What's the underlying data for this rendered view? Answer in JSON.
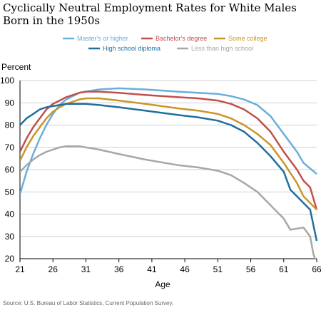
{
  "chart_data": {
    "type": "line",
    "title": "Cyclically Neutral Employment Rates for White Males Born in the 1950s",
    "ylabel": "Percent",
    "xlabel": "Age",
    "xlim": [
      21,
      66
    ],
    "ylim": [
      20,
      100
    ],
    "x_ticks": [
      21,
      26,
      31,
      36,
      41,
      46,
      51,
      56,
      61,
      66
    ],
    "y_ticks": [
      20,
      30,
      40,
      50,
      60,
      70,
      80,
      90,
      100
    ],
    "grid": "horizontal",
    "legend_position": "top",
    "source": "Source: U.S. Bureau of Labor Statistics, Current Population Survey.",
    "series": [
      {
        "name": "Master's or higher",
        "color": "#6aaedc",
        "points": [
          [
            21,
            49
          ],
          [
            22,
            59
          ],
          [
            23,
            67
          ],
          [
            24,
            74
          ],
          [
            25,
            80
          ],
          [
            26,
            85
          ],
          [
            27,
            89
          ],
          [
            28,
            91.5
          ],
          [
            29,
            93
          ],
          [
            30,
            94.5
          ],
          [
            31,
            95
          ],
          [
            33,
            96
          ],
          [
            36,
            96.5
          ],
          [
            40,
            96
          ],
          [
            45,
            95
          ],
          [
            48,
            94.5
          ],
          [
            51,
            94
          ],
          [
            53,
            93
          ],
          [
            55,
            91.5
          ],
          [
            57,
            89
          ],
          [
            59,
            84
          ],
          [
            61,
            76
          ],
          [
            63,
            68
          ],
          [
            64,
            63
          ],
          [
            65,
            60.5
          ],
          [
            66,
            58
          ]
        ]
      },
      {
        "name": "Bachelor's degree",
        "color": "#c0504d",
        "points": [
          [
            21,
            68
          ],
          [
            22,
            74
          ],
          [
            23,
            79
          ],
          [
            24,
            83
          ],
          [
            25,
            87
          ],
          [
            26,
            89.5
          ],
          [
            27,
            91
          ],
          [
            28,
            92.5
          ],
          [
            29,
            93.5
          ],
          [
            30,
            94.5
          ],
          [
            31,
            95
          ],
          [
            33,
            95
          ],
          [
            36,
            94.5
          ],
          [
            40,
            93.5
          ],
          [
            45,
            92.5
          ],
          [
            48,
            92
          ],
          [
            51,
            91
          ],
          [
            53,
            89.5
          ],
          [
            55,
            87
          ],
          [
            57,
            83
          ],
          [
            59,
            77
          ],
          [
            61,
            68
          ],
          [
            63,
            60
          ],
          [
            64,
            55
          ],
          [
            65,
            52
          ],
          [
            66,
            42
          ]
        ]
      },
      {
        "name": "Some college",
        "color": "#c9962b",
        "points": [
          [
            21,
            64
          ],
          [
            22,
            70
          ],
          [
            23,
            75
          ],
          [
            24,
            79
          ],
          [
            25,
            83
          ],
          [
            26,
            86
          ],
          [
            27,
            88
          ],
          [
            28,
            89.5
          ],
          [
            29,
            90.5
          ],
          [
            30,
            91.5
          ],
          [
            31,
            92
          ],
          [
            33,
            92
          ],
          [
            36,
            91
          ],
          [
            40,
            89.5
          ],
          [
            45,
            87.5
          ],
          [
            48,
            86.5
          ],
          [
            51,
            85
          ],
          [
            53,
            83
          ],
          [
            55,
            80
          ],
          [
            57,
            76
          ],
          [
            59,
            71
          ],
          [
            61,
            63
          ],
          [
            63,
            54
          ],
          [
            64,
            48
          ],
          [
            65,
            45
          ],
          [
            66,
            42
          ]
        ]
      },
      {
        "name": "High school diploma",
        "color": "#1f6f9e",
        "points": [
          [
            21,
            80
          ],
          [
            22,
            83
          ],
          [
            23,
            85
          ],
          [
            24,
            87
          ],
          [
            25,
            88
          ],
          [
            26,
            88.5
          ],
          [
            27,
            89
          ],
          [
            28,
            89.5
          ],
          [
            29,
            89.5
          ],
          [
            30,
            89.5
          ],
          [
            31,
            89.5
          ],
          [
            33,
            89
          ],
          [
            36,
            88
          ],
          [
            40,
            86.5
          ],
          [
            45,
            84.5
          ],
          [
            48,
            83.5
          ],
          [
            51,
            82
          ],
          [
            53,
            80
          ],
          [
            55,
            77
          ],
          [
            57,
            72
          ],
          [
            59,
            66
          ],
          [
            61,
            59
          ],
          [
            62,
            51
          ],
          [
            63,
            48
          ],
          [
            65,
            42
          ],
          [
            66,
            28
          ]
        ]
      },
      {
        "name": "Less than high school",
        "color": "#a7a7a7",
        "points": [
          [
            21,
            59
          ],
          [
            22,
            62
          ],
          [
            23,
            64.5
          ],
          [
            24,
            66.5
          ],
          [
            25,
            68
          ],
          [
            26,
            69
          ],
          [
            27,
            70
          ],
          [
            28,
            70.5
          ],
          [
            29,
            70.5
          ],
          [
            30,
            70.5
          ],
          [
            31,
            70
          ],
          [
            33,
            69
          ],
          [
            36,
            67
          ],
          [
            40,
            64.5
          ],
          [
            45,
            62
          ],
          [
            48,
            61
          ],
          [
            51,
            59.5
          ],
          [
            53,
            57.5
          ],
          [
            55,
            54
          ],
          [
            57,
            50
          ],
          [
            59,
            44
          ],
          [
            61,
            38
          ],
          [
            62,
            33
          ],
          [
            63,
            33.5
          ],
          [
            64,
            34
          ],
          [
            65,
            30
          ],
          [
            65.5,
            22
          ],
          [
            66,
            18
          ]
        ]
      }
    ]
  }
}
